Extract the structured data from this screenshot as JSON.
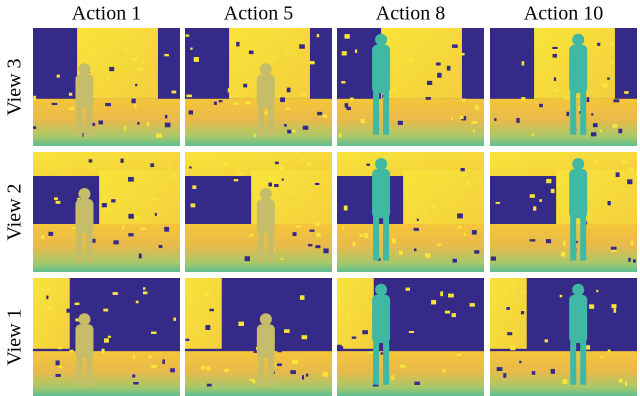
{
  "columns": [
    "Action 1",
    "Action 5",
    "Action 8",
    "Action 10"
  ],
  "rows": [
    "View 3",
    "View 2",
    "View 1"
  ]
}
